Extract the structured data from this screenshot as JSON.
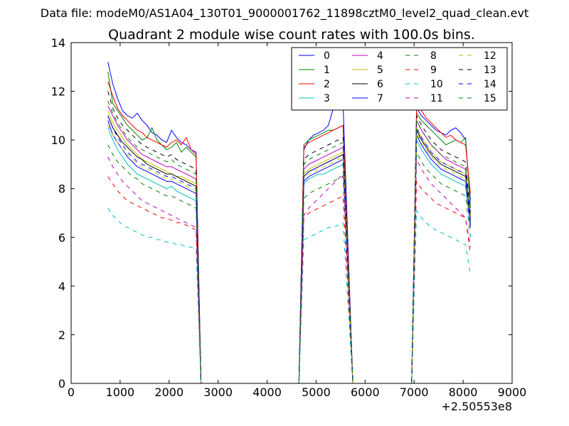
{
  "suptitle": "Data file: modeM0/AS1A04_130T01_9000001762_11898cztM0_level2_quad_clean.evt",
  "chart_data": {
    "type": "line",
    "title": "Quadrant 2 module wise count rates with 100.0s bins.",
    "xlabel": "",
    "ylabel": "",
    "x_offset_label": "+2.50553e8",
    "xlim": [
      0,
      9000
    ],
    "ylim": [
      0,
      14
    ],
    "x_ticks": [
      0,
      1000,
      2000,
      3000,
      4000,
      5000,
      6000,
      7000,
      8000,
      9000
    ],
    "y_ticks": [
      0,
      2,
      4,
      6,
      8,
      10,
      12,
      14
    ],
    "grid": false,
    "legend_position": "top-right",
    "legend_columns": 4,
    "segments": [
      {
        "x_start": 750,
        "x_end": 2550,
        "drop_to": 2650
      },
      {
        "x_start": 4750,
        "x_end": 5550,
        "rise_from": 4650,
        "drop_to": 5750
      },
      {
        "x_start": 7050,
        "x_end": 8150,
        "rise_from": 6950
      }
    ],
    "gap_value": 0,
    "series": [
      {
        "name": "0",
        "color": "#0000ff",
        "dash": "solid",
        "seg_values": [
          [
            13.2,
            12.3,
            11.7,
            11.2,
            11.0,
            10.9,
            11.1,
            10.8,
            10.6,
            10.3,
            10.2,
            10.0,
            9.9,
            10.4,
            10.1,
            9.9,
            9.8,
            9.6,
            9.5
          ],
          [
            9.6,
            10.0,
            10.2,
            10.3,
            10.4,
            10.6,
            11.3,
            11.4,
            11.5
          ],
          [
            11.3,
            11.0,
            10.8,
            10.6,
            10.4,
            10.3,
            10.2,
            10.4,
            10.5,
            10.3,
            10.0,
            7.5
          ]
        ]
      },
      {
        "name": "1",
        "color": "#008000",
        "dash": "solid",
        "seg_values": [
          [
            12.8,
            11.5,
            11.2,
            10.9,
            10.6,
            10.4,
            10.2,
            10.0,
            10.1,
            10.5,
            10.0,
            9.8,
            9.6,
            9.7,
            9.9,
            9.5,
            9.7,
            9.5,
            9.3
          ],
          [
            9.8,
            10.0,
            10.1,
            10.2,
            10.3,
            10.4,
            10.4,
            10.5,
            10.6
          ],
          [
            11.1,
            10.8,
            10.6,
            10.4,
            10.2,
            10.0,
            9.8,
            9.9,
            10.0,
            9.9,
            10.1,
            7.2
          ]
        ]
      },
      {
        "name": "2",
        "color": "#ff0000",
        "dash": "solid",
        "seg_values": [
          [
            12.4,
            11.8,
            11.3,
            11.0,
            10.8,
            10.6,
            10.4,
            10.3,
            10.1,
            10.0,
            9.9,
            9.8,
            9.7,
            9.9,
            10.0,
            9.8,
            10.1,
            9.6,
            9.4
          ],
          [
            9.7,
            9.9,
            10.0,
            10.1,
            10.2,
            10.3,
            10.4,
            10.5,
            10.6
          ],
          [
            11.4,
            11.2,
            10.9,
            10.7,
            10.5,
            10.3,
            10.1,
            10.2,
            10.0,
            9.9,
            9.8,
            7.8
          ]
        ]
      },
      {
        "name": "3",
        "color": "#00bfbf",
        "dash": "solid",
        "seg_values": [
          [
            10.5,
            10.0,
            9.6,
            9.3,
            9.0,
            8.8,
            8.6,
            8.5,
            8.4,
            8.3,
            8.2,
            8.1,
            8.0,
            8.1,
            7.9,
            7.8,
            7.7,
            7.6,
            7.5
          ],
          [
            8.2,
            8.4,
            8.5,
            8.6,
            8.6,
            8.7,
            8.8,
            8.9,
            9.0
          ],
          [
            10.0,
            9.6,
            9.3,
            9.0,
            8.8,
            8.6,
            8.5,
            8.4,
            8.3,
            8.2,
            8.1,
            6.5
          ]
        ]
      },
      {
        "name": "4",
        "color": "#bf00bf",
        "dash": "solid",
        "seg_values": [
          [
            11.4,
            11.0,
            10.6,
            10.3,
            10.0,
            9.8,
            9.6,
            9.4,
            9.3,
            9.2,
            9.1,
            9.0,
            8.9,
            8.9,
            8.8,
            8.7,
            8.6,
            8.5,
            8.4
          ],
          [
            8.8,
            9.0,
            9.1,
            9.2,
            9.3,
            9.4,
            9.5,
            9.6,
            9.7
          ],
          [
            10.8,
            10.4,
            10.1,
            9.8,
            9.6,
            9.4,
            9.2,
            9.1,
            9.0,
            8.9,
            8.8,
            6.8
          ]
        ]
      },
      {
        "name": "5",
        "color": "#bfbf00",
        "dash": "solid",
        "seg_values": [
          [
            11.2,
            10.7,
            10.4,
            10.1,
            9.8,
            9.6,
            9.4,
            9.2,
            9.1,
            9.0,
            8.9,
            8.8,
            8.7,
            8.6,
            8.5,
            8.5,
            8.4,
            8.3,
            8.2
          ],
          [
            8.6,
            8.8,
            8.9,
            9.0,
            9.1,
            9.2,
            9.3,
            9.4,
            9.5
          ],
          [
            10.5,
            10.1,
            9.8,
            9.5,
            9.3,
            9.1,
            9.0,
            8.9,
            8.8,
            8.7,
            8.6,
            6.6
          ]
        ]
      },
      {
        "name": "6",
        "color": "#000000",
        "dash": "solid",
        "seg_values": [
          [
            11.0,
            10.5,
            10.2,
            9.9,
            9.7,
            9.5,
            9.3,
            9.2,
            9.0,
            8.9,
            8.8,
            8.7,
            8.6,
            8.6,
            8.5,
            8.4,
            8.3,
            8.2,
            8.1
          ],
          [
            8.5,
            8.7,
            8.8,
            8.9,
            9.0,
            9.1,
            9.2,
            9.3,
            9.4
          ],
          [
            10.4,
            10.0,
            9.7,
            9.4,
            9.2,
            9.0,
            8.9,
            8.8,
            8.7,
            8.6,
            8.5,
            6.5
          ]
        ]
      },
      {
        "name": "7",
        "color": "#0000ff",
        "dash": "solid",
        "seg_values": [
          [
            10.8,
            10.2,
            9.9,
            9.6,
            9.3,
            9.1,
            8.9,
            8.8,
            8.7,
            8.6,
            8.5,
            8.4,
            8.3,
            8.3,
            8.2,
            8.1,
            8.0,
            7.9,
            7.8
          ],
          [
            8.3,
            8.5,
            8.6,
            8.7,
            8.8,
            8.9,
            9.0,
            9.1,
            9.2
          ],
          [
            10.2,
            9.8,
            9.5,
            9.2,
            9.0,
            8.8,
            8.7,
            8.6,
            8.5,
            8.4,
            8.3,
            6.4
          ]
        ]
      },
      {
        "name": "8",
        "color": "#008000",
        "dash": "dashed",
        "seg_values": [
          [
            9.8,
            9.4,
            9.1,
            8.9,
            8.7,
            8.5,
            8.4,
            8.2,
            8.1,
            8.0,
            7.9,
            7.8,
            7.7,
            7.7,
            7.6,
            7.5,
            7.4,
            7.3,
            7.2
          ],
          [
            7.6,
            7.8,
            7.9,
            8.0,
            8.1,
            8.2,
            8.3,
            8.4,
            8.5
          ],
          [
            9.5,
            9.1,
            8.8,
            8.6,
            8.4,
            8.2,
            8.1,
            8.0,
            7.9,
            7.8,
            7.7,
            6.0
          ]
        ]
      },
      {
        "name": "9",
        "color": "#ff0000",
        "dash": "dashed",
        "seg_values": [
          [
            8.5,
            8.2,
            7.9,
            7.7,
            7.5,
            7.4,
            7.3,
            7.2,
            7.1,
            7.0,
            6.9,
            6.8,
            6.8,
            6.7,
            6.6,
            6.6,
            6.5,
            6.4,
            6.3
          ],
          [
            6.8,
            7.0,
            7.1,
            7.2,
            7.3,
            7.4,
            7.5,
            7.6,
            7.7
          ],
          [
            8.3,
            8.0,
            7.8,
            7.6,
            7.4,
            7.3,
            7.2,
            7.1,
            7.0,
            6.9,
            6.8,
            5.3
          ]
        ]
      },
      {
        "name": "10",
        "color": "#00bfbf",
        "dash": "dashed",
        "seg_values": [
          [
            7.2,
            6.9,
            6.7,
            6.5,
            6.4,
            6.3,
            6.2,
            6.1,
            6.0,
            6.0,
            5.9,
            5.9,
            5.8,
            5.8,
            5.7,
            5.7,
            5.6,
            5.6,
            5.5
          ],
          [
            5.9,
            6.0,
            6.1,
            6.2,
            6.3,
            6.4,
            6.4,
            6.5,
            6.6
          ],
          [
            7.1,
            6.8,
            6.6,
            6.4,
            6.3,
            6.2,
            6.1,
            6.0,
            5.9,
            5.8,
            5.7,
            4.5
          ]
        ]
      },
      {
        "name": "11",
        "color": "#bf00bf",
        "dash": "dashed",
        "seg_values": [
          [
            9.3,
            8.9,
            8.6,
            8.3,
            8.1,
            7.9,
            7.7,
            7.5,
            7.4,
            7.3,
            7.2,
            7.1,
            7.0,
            6.9,
            6.8,
            6.7,
            6.6,
            6.5,
            6.4
          ],
          [
            6.9,
            7.2,
            7.4,
            7.6,
            7.8,
            8.0,
            8.2,
            8.4,
            8.6
          ],
          [
            9.2,
            8.8,
            8.5,
            8.2,
            8.0,
            7.8,
            7.6,
            7.4,
            7.2,
            7.0,
            6.8,
            5.6
          ]
        ]
      },
      {
        "name": "12",
        "color": "#bfbf00",
        "dash": "dashed",
        "seg_values": [
          [
            10.6,
            10.2,
            9.9,
            9.6,
            9.4,
            9.2,
            9.0,
            8.9,
            8.8,
            8.7,
            8.6,
            8.5,
            8.4,
            8.4,
            8.3,
            8.2,
            8.1,
            8.0,
            7.9
          ],
          [
            8.4,
            8.6,
            8.7,
            8.8,
            8.9,
            9.0,
            9.1,
            9.2,
            9.3
          ],
          [
            10.3,
            9.9,
            9.6,
            9.3,
            9.1,
            8.9,
            8.8,
            8.7,
            8.6,
            8.5,
            8.4,
            6.6
          ]
        ]
      },
      {
        "name": "13",
        "color": "#000000",
        "dash": "dashed",
        "seg_values": [
          [
            12.0,
            11.3,
            10.9,
            10.6,
            10.4,
            10.2,
            10.0,
            9.8,
            9.7,
            9.6,
            9.5,
            9.4,
            9.3,
            9.4,
            9.2,
            9.1,
            9.0,
            8.9,
            8.8
          ],
          [
            9.2,
            9.4,
            9.5,
            9.6,
            9.7,
            9.8,
            9.9,
            10.0,
            10.1
          ],
          [
            11.0,
            10.6,
            10.3,
            10.0,
            9.8,
            9.6,
            9.5,
            9.4,
            9.3,
            9.2,
            9.1,
            7.0
          ]
        ]
      },
      {
        "name": "14",
        "color": "#0000ff",
        "dash": "dashed",
        "seg_values": [
          [
            11.0,
            10.5,
            10.1,
            9.8,
            9.5,
            9.3,
            9.1,
            9.0,
            8.9,
            8.8,
            8.7,
            8.6,
            8.5,
            8.5,
            8.4,
            8.3,
            8.2,
            8.1,
            8.0
          ],
          [
            8.5,
            8.7,
            8.8,
            8.9,
            9.0,
            9.1,
            9.2,
            9.3,
            9.4
          ],
          [
            10.5,
            10.1,
            9.8,
            9.5,
            9.3,
            9.1,
            9.0,
            8.9,
            8.8,
            8.7,
            8.6,
            6.7
          ]
        ]
      },
      {
        "name": "15",
        "color": "#008000",
        "dash": "dashed",
        "seg_values": [
          [
            11.6,
            11.1,
            10.7,
            10.4,
            10.1,
            9.9,
            9.7,
            9.6,
            9.5,
            9.4,
            9.3,
            9.2,
            9.1,
            9.2,
            9.0,
            8.9,
            8.8,
            8.7,
            8.6
          ],
          [
            9.0,
            9.2,
            9.3,
            9.4,
            9.5,
            9.6,
            9.7,
            9.8,
            9.9
          ],
          [
            10.8,
            10.4,
            10.1,
            9.8,
            9.6,
            9.4,
            9.3,
            9.2,
            9.1,
            9.0,
            8.9,
            6.9
          ]
        ]
      }
    ]
  }
}
